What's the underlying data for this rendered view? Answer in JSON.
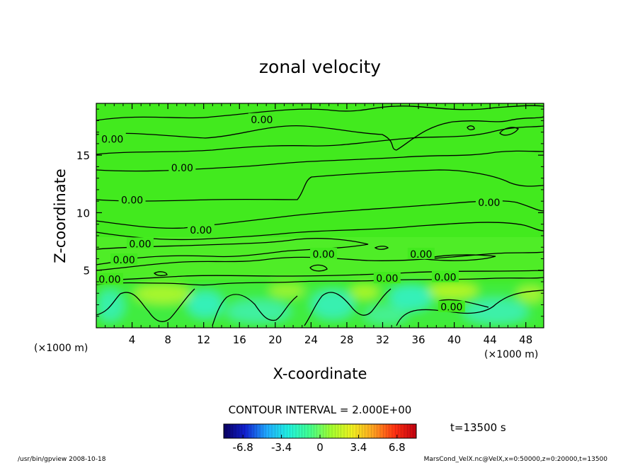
{
  "chart_data": {
    "type": "heatmap",
    "title": "zonal velocity",
    "xlabel": "X-coordinate",
    "ylabel": "Z-coordinate",
    "x_unit_left": "(×1000 m)",
    "x_unit_right": "(×1000 m)",
    "xlim": [
      0,
      50
    ],
    "ylim": [
      0,
      19.5
    ],
    "xticks": [
      4,
      8,
      12,
      16,
      20,
      24,
      28,
      32,
      36,
      40,
      44,
      48
    ],
    "yticks": [
      5,
      10,
      15
    ],
    "contour_interval_text": "CONTOUR INTERVAL = 2.000E+00",
    "time_text": "t=13500 s",
    "colorbar": {
      "ticks": [
        "-6.8",
        "-3.4",
        "0",
        "3.4",
        "6.8"
      ],
      "min": -8.5,
      "max": 8.5,
      "colors": [
        "#0a0060",
        "#1020d0",
        "#20a8ff",
        "#20f0e0",
        "#40ff90",
        "#a0ff30",
        "#f0f020",
        "#ffa020",
        "#ff3010",
        "#c00010"
      ]
    },
    "contour_labels": [
      {
        "x": 1.8,
        "y": 16.4,
        "text": "0.00"
      },
      {
        "x": 9.6,
        "y": 13.9,
        "text": "0.00"
      },
      {
        "x": 4.0,
        "y": 11.1,
        "text": "0.00"
      },
      {
        "x": 11.7,
        "y": 8.5,
        "text": "0.00"
      },
      {
        "x": 4.9,
        "y": 7.3,
        "text": "0.00"
      },
      {
        "x": 3.1,
        "y": 5.9,
        "text": "0.00"
      },
      {
        "x": 1.5,
        "y": 4.2,
        "text": "0.00"
      },
      {
        "x": 18.5,
        "y": 18.1,
        "text": "0.00"
      },
      {
        "x": 25.4,
        "y": 6.4,
        "text": "0.00"
      },
      {
        "x": 36.3,
        "y": 6.4,
        "text": "0.00"
      },
      {
        "x": 32.5,
        "y": 4.3,
        "text": "0.00"
      },
      {
        "x": 39.0,
        "y": 4.4,
        "text": "0.00"
      },
      {
        "x": 43.9,
        "y": 10.9,
        "text": "0.00"
      },
      {
        "x": 39.7,
        "y": 1.8,
        "text": "0.00"
      }
    ]
  },
  "footer": {
    "left": "/usr/bin/gpview   2008-10-18",
    "right": "MarsCond_VelX.nc@VelX,x=0:50000,z=0:20000,t=13500"
  }
}
